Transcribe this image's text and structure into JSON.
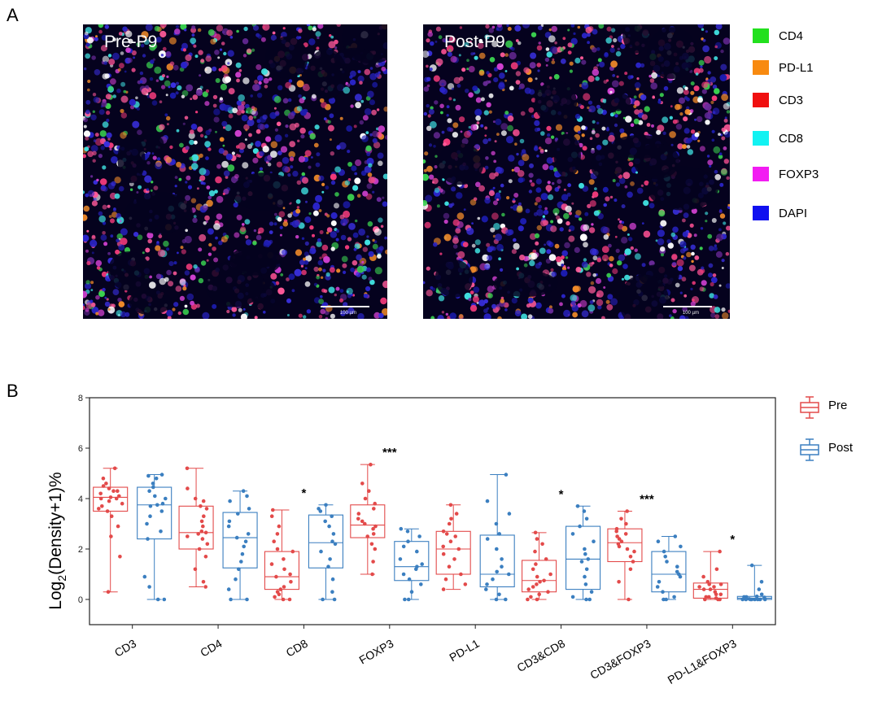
{
  "panel_a": {
    "letter": "A",
    "images": [
      {
        "title": "Pre-P9",
        "scale_text": "100 µm"
      },
      {
        "title": "Post-P9",
        "scale_text": "100 µm"
      }
    ],
    "legend": [
      {
        "label": "CD4",
        "color": "#22e01e"
      },
      {
        "label": "PD-L1",
        "color": "#f88a10"
      },
      {
        "label": "CD3",
        "color": "#f01010"
      },
      {
        "label": "CD8",
        "color": "#12f2f2"
      },
      {
        "label": "FOXP3",
        "color": "#f21cf2"
      },
      {
        "label": "DAPI",
        "color": "#1010f0"
      }
    ]
  },
  "panel_b": {
    "letter": "B",
    "legend": [
      {
        "label": "Pre",
        "color": "#e34a4a"
      },
      {
        "label": "Post",
        "color": "#3b7fc0"
      }
    ]
  },
  "chart_data": {
    "type": "box",
    "title": "",
    "xlabel": "",
    "ylabel_main": "Log",
    "ylabel_sub": "2",
    "ylabel_rest": "(Density+1)%",
    "ylim": [
      -1,
      8
    ],
    "yticks": [
      0,
      2,
      4,
      6,
      8
    ],
    "categories": [
      "CD3",
      "CD4",
      "CD8",
      "FOXP3",
      "PD-L1",
      "CD3&CD8",
      "CD3&FOXP3",
      "PD-L1&FOXP3"
    ],
    "significance": [
      "",
      "",
      "*",
      "***",
      "",
      "*",
      "***",
      "*"
    ],
    "series": [
      {
        "name": "Pre",
        "color": "#e34a4a",
        "boxes": [
          {
            "min": 0.3,
            "q1": 3.5,
            "median": 4.05,
            "q3": 4.45,
            "max": 5.2
          },
          {
            "min": 0.5,
            "q1": 2.0,
            "median": 2.65,
            "q3": 3.7,
            "max": 5.2
          },
          {
            "min": 0.0,
            "q1": 0.4,
            "median": 0.9,
            "q3": 1.9,
            "max": 3.55
          },
          {
            "min": 1.0,
            "q1": 2.45,
            "median": 2.95,
            "q3": 3.75,
            "max": 5.35
          },
          {
            "min": 0.4,
            "q1": 1.0,
            "median": 2.0,
            "q3": 2.7,
            "max": 3.75
          },
          {
            "min": 0.0,
            "q1": 0.3,
            "median": 0.75,
            "q3": 1.55,
            "max": 2.65
          },
          {
            "min": 0.0,
            "q1": 1.5,
            "median": 2.25,
            "q3": 2.8,
            "max": 3.5
          },
          {
            "min": 0.0,
            "q1": 0.05,
            "median": 0.4,
            "q3": 0.65,
            "max": 1.9
          }
        ],
        "points": [
          [
            0.3,
            1.7,
            2.5,
            2.9,
            3.3,
            3.5,
            3.6,
            3.7,
            3.8,
            3.9,
            4.0,
            4.0,
            4.05,
            4.1,
            4.2,
            4.3,
            4.3,
            4.4,
            4.5,
            4.6,
            4.8,
            5.2
          ],
          [
            0.5,
            0.7,
            1.2,
            1.7,
            2.0,
            2.2,
            2.4,
            2.5,
            2.6,
            2.65,
            2.7,
            2.9,
            3.1,
            3.3,
            3.6,
            3.7,
            3.9,
            4.0,
            4.4,
            5.2
          ],
          [
            0.0,
            0.0,
            0.1,
            0.2,
            0.3,
            0.4,
            0.5,
            0.7,
            0.9,
            1.0,
            1.2,
            1.4,
            1.6,
            1.9,
            2.0,
            2.3,
            2.6,
            2.9,
            3.3,
            3.55
          ],
          [
            1.0,
            1.5,
            2.0,
            2.2,
            2.5,
            2.6,
            2.8,
            2.9,
            3.0,
            3.1,
            3.2,
            3.4,
            3.6,
            3.8,
            4.0,
            4.3,
            4.6,
            5.35
          ],
          [
            0.4,
            0.6,
            0.8,
            1.0,
            1.3,
            1.6,
            1.8,
            2.0,
            2.1,
            2.3,
            2.5,
            2.6,
            2.7,
            3.0,
            3.2,
            3.4,
            3.75
          ],
          [
            0.0,
            0.0,
            0.1,
            0.2,
            0.3,
            0.4,
            0.5,
            0.6,
            0.7,
            0.75,
            0.9,
            1.0,
            1.2,
            1.4,
            1.6,
            1.9,
            2.2,
            2.4,
            2.65
          ],
          [
            0.0,
            0.7,
            1.2,
            1.5,
            1.7,
            1.9,
            2.0,
            2.1,
            2.2,
            2.3,
            2.4,
            2.5,
            2.6,
            2.7,
            2.8,
            3.0,
            3.2,
            3.5
          ],
          [
            0.0,
            0.0,
            0.0,
            0.05,
            0.1,
            0.1,
            0.2,
            0.2,
            0.3,
            0.4,
            0.4,
            0.5,
            0.5,
            0.6,
            0.6,
            0.7,
            0.9,
            1.2,
            1.9
          ]
        ]
      },
      {
        "name": "Post",
        "color": "#3b7fc0",
        "boxes": [
          {
            "min": 0.0,
            "q1": 2.4,
            "median": 3.75,
            "q3": 4.45,
            "max": 4.95
          },
          {
            "min": 0.0,
            "q1": 1.25,
            "median": 2.45,
            "q3": 3.45,
            "max": 4.3
          },
          {
            "min": 0.0,
            "q1": 1.25,
            "median": 2.25,
            "q3": 3.35,
            "max": 3.75
          },
          {
            "min": 0.0,
            "q1": 0.75,
            "median": 1.3,
            "q3": 2.3,
            "max": 2.8
          },
          {
            "min": 0.0,
            "q1": 0.5,
            "median": 1.0,
            "q3": 2.55,
            "max": 4.95
          },
          {
            "min": 0.0,
            "q1": 0.4,
            "median": 1.6,
            "q3": 2.9,
            "max": 3.7
          },
          {
            "min": 0.0,
            "q1": 0.3,
            "median": 1.0,
            "q3": 1.9,
            "max": 2.5
          },
          {
            "min": 0.0,
            "q1": 0.0,
            "median": 0.05,
            "q3": 0.12,
            "max": 1.35
          }
        ],
        "points": [
          [
            0.0,
            0.0,
            0.5,
            0.9,
            2.4,
            2.7,
            3.0,
            3.3,
            3.5,
            3.7,
            3.75,
            3.8,
            4.0,
            4.1,
            4.3,
            4.45,
            4.6,
            4.8,
            4.9,
            4.95
          ],
          [
            0.0,
            0.0,
            0.4,
            0.8,
            1.2,
            1.5,
            1.8,
            2.1,
            2.3,
            2.45,
            2.6,
            2.9,
            3.1,
            3.4,
            3.6,
            3.9,
            4.1,
            4.3
          ],
          [
            0.0,
            0.0,
            0.3,
            0.8,
            1.3,
            1.6,
            1.9,
            2.2,
            2.3,
            2.6,
            2.9,
            3.1,
            3.3,
            3.5,
            3.6,
            3.75
          ],
          [
            0.0,
            0.0,
            0.3,
            0.6,
            0.8,
            1.0,
            1.2,
            1.3,
            1.4,
            1.6,
            1.9,
            2.1,
            2.3,
            2.5,
            2.7,
            2.8
          ],
          [
            0.0,
            0.0,
            0.2,
            0.4,
            0.6,
            0.8,
            1.0,
            1.1,
            1.3,
            1.6,
            2.0,
            2.4,
            2.6,
            3.0,
            3.4,
            3.9,
            4.95
          ],
          [
            0.0,
            0.0,
            0.1,
            0.3,
            0.6,
            0.9,
            1.2,
            1.5,
            1.6,
            1.8,
            2.0,
            2.3,
            2.6,
            2.9,
            3.2,
            3.5,
            3.7
          ],
          [
            0.0,
            0.0,
            0.1,
            0.3,
            0.5,
            0.7,
            0.9,
            1.0,
            1.1,
            1.3,
            1.5,
            1.7,
            1.9,
            2.1,
            2.3,
            2.5
          ],
          [
            0.0,
            0.0,
            0.0,
            0.0,
            0.0,
            0.0,
            0.0,
            0.0,
            0.02,
            0.05,
            0.05,
            0.08,
            0.1,
            0.1,
            0.12,
            0.2,
            0.4,
            0.7,
            1.35
          ]
        ]
      }
    ]
  }
}
